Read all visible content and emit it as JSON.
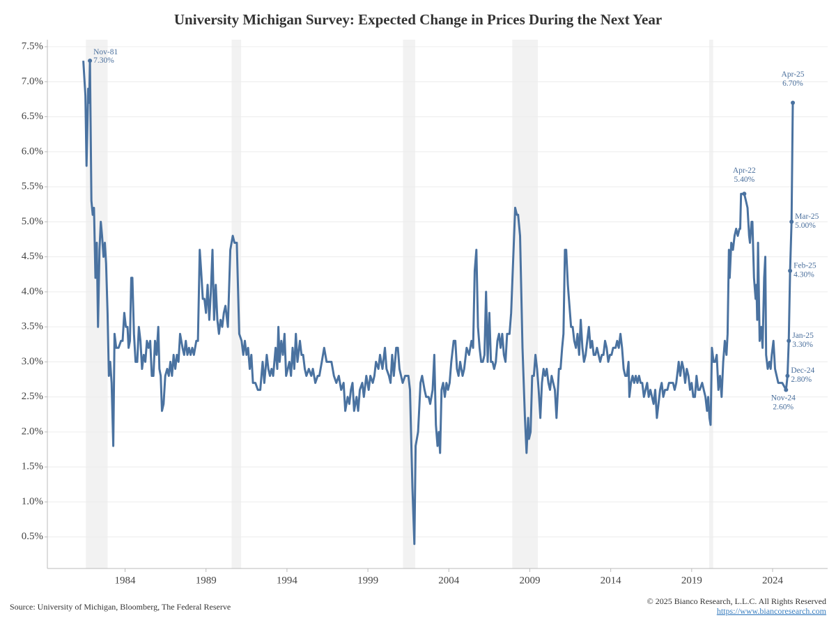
{
  "chart_data": {
    "type": "line",
    "title": "University Michigan Survey: Expected Change in Prices During the Next Year",
    "source": "Source: University of Michigan, Bloomberg, The Federal Reserve",
    "copyright": "© 2025 Bianco Research, L.L.C. All Rights Reserved",
    "url": "https://www.biancoresearch.com",
    "xlim": [
      1979.2,
      2027.4
    ],
    "xticks": [
      1984,
      1989,
      1994,
      1999,
      2004,
      2009,
      2014,
      2019,
      2024
    ],
    "ylim": [
      0.05,
      7.6
    ],
    "yticks": [
      {
        "value": 0.5,
        "label": "0.5%"
      },
      {
        "value": 1.0,
        "label": "1.0%"
      },
      {
        "value": 1.5,
        "label": "1.5%"
      },
      {
        "value": 2.0,
        "label": "2.0%"
      },
      {
        "value": 2.5,
        "label": "2.5%"
      },
      {
        "value": 3.0,
        "label": "3.0%"
      },
      {
        "value": 3.5,
        "label": "3.5%"
      },
      {
        "value": 4.0,
        "label": "4.0%"
      },
      {
        "value": 4.5,
        "label": "4.5%"
      },
      {
        "value": 5.0,
        "label": "5.0%"
      },
      {
        "value": 5.5,
        "label": "5.5%"
      },
      {
        "value": 6.0,
        "label": "6.0%"
      },
      {
        "value": 6.5,
        "label": "6.5%"
      },
      {
        "value": 7.0,
        "label": "7.0%"
      },
      {
        "value": 7.5,
        "label": "7.5%"
      }
    ],
    "grid": true,
    "shaded_periods": [
      [
        1981.58,
        1982.92
      ],
      [
        1990.58,
        1991.17
      ],
      [
        2001.17,
        2001.92
      ],
      [
        2007.92,
        2009.5
      ],
      [
        2020.08,
        2020.33
      ]
    ],
    "shade_color": "#f2f2f2",
    "x": [
      1981.42,
      1981.55,
      1981.62,
      1981.72,
      1981.78,
      1981.83,
      1981.92,
      1982.0,
      1982.08,
      1982.17,
      1982.25,
      1982.33,
      1982.42,
      1982.5,
      1982.58,
      1982.67,
      1982.75,
      1982.83,
      1982.92,
      1983.0,
      1983.08,
      1983.17,
      1983.27,
      1983.35,
      1983.45,
      1983.6,
      1983.75,
      1983.85,
      1983.95,
      1984.05,
      1984.15,
      1984.22,
      1984.3,
      1984.38,
      1984.45,
      1984.55,
      1984.65,
      1984.75,
      1984.85,
      1984.95,
      1985.05,
      1985.15,
      1985.25,
      1985.35,
      1985.45,
      1985.55,
      1985.65,
      1985.75,
      1985.85,
      1985.95,
      1986.05,
      1986.12,
      1986.2,
      1986.28,
      1986.38,
      1986.48,
      1986.6,
      1986.7,
      1986.8,
      1986.9,
      1987.0,
      1987.1,
      1987.2,
      1987.3,
      1987.4,
      1987.55,
      1987.65,
      1987.75,
      1987.85,
      1987.95,
      1988.05,
      1988.15,
      1988.25,
      1988.4,
      1988.5,
      1988.61,
      1988.7,
      1988.8,
      1988.9,
      1989.0,
      1989.1,
      1989.2,
      1989.3,
      1989.4,
      1989.5,
      1989.6,
      1989.7,
      1989.8,
      1989.9,
      1990.0,
      1990.1,
      1990.2,
      1990.35,
      1990.5,
      1990.65,
      1990.76,
      1990.9,
      1991.05,
      1991.2,
      1991.3,
      1991.4,
      1991.5,
      1991.6,
      1991.7,
      1991.8,
      1991.9,
      1992.05,
      1992.2,
      1992.35,
      1992.5,
      1992.6,
      1992.75,
      1992.85,
      1992.95,
      1993.05,
      1993.15,
      1993.3,
      1993.4,
      1993.47,
      1993.55,
      1993.65,
      1993.75,
      1993.85,
      1993.95,
      1994.05,
      1994.15,
      1994.25,
      1994.35,
      1994.45,
      1994.55,
      1994.65,
      1994.8,
      1994.9,
      1995.0,
      1995.1,
      1995.2,
      1995.35,
      1995.5,
      1995.6,
      1995.75,
      1995.9,
      1996.0,
      1996.15,
      1996.3,
      1996.45,
      1996.6,
      1996.75,
      1996.9,
      1997.05,
      1997.2,
      1997.35,
      1997.5,
      1997.6,
      1997.75,
      1997.85,
      1997.95,
      1998.05,
      1998.15,
      1998.3,
      1998.4,
      1998.5,
      1998.65,
      1998.75,
      1998.9,
      1999.05,
      1999.15,
      1999.3,
      1999.4,
      1999.5,
      1999.65,
      1999.75,
      1999.9,
      2000.05,
      2000.15,
      2000.3,
      2000.4,
      2000.5,
      2000.6,
      2000.75,
      2000.85,
      2000.95,
      2001.05,
      2001.15,
      2001.3,
      2001.5,
      2001.6,
      2001.75,
      2001.87,
      2001.95,
      2002.1,
      2002.25,
      2002.35,
      2002.5,
      2002.6,
      2002.75,
      2002.85,
      2003.0,
      2003.1,
      2003.2,
      2003.3,
      2003.38,
      2003.46,
      2003.55,
      2003.65,
      2003.75,
      2003.85,
      2003.95,
      2004.05,
      2004.15,
      2004.3,
      2004.4,
      2004.5,
      2004.6,
      2004.7,
      2004.85,
      2004.95,
      2005.1,
      2005.25,
      2005.4,
      2005.5,
      2005.6,
      2005.7,
      2005.8,
      2005.9,
      2006.0,
      2006.1,
      2006.2,
      2006.3,
      2006.4,
      2006.5,
      2006.6,
      2006.7,
      2006.8,
      2006.9,
      2007.0,
      2007.1,
      2007.2,
      2007.3,
      2007.4,
      2007.5,
      2007.6,
      2007.75,
      2007.85,
      2007.95,
      2008.1,
      2008.2,
      2008.28,
      2008.4,
      2008.55,
      2008.7,
      2008.8,
      2008.9,
      2008.95,
      2009.05,
      2009.15,
      2009.25,
      2009.35,
      2009.45,
      2009.55,
      2009.65,
      2009.75,
      2009.85,
      2009.95,
      2010.05,
      2010.15,
      2010.25,
      2010.35,
      2010.45,
      2010.55,
      2010.65,
      2010.8,
      2010.9,
      2011.0,
      2011.08,
      2011.17,
      2011.25,
      2011.35,
      2011.45,
      2011.55,
      2011.65,
      2011.75,
      2011.85,
      2011.95,
      2012.05,
      2012.15,
      2012.25,
      2012.35,
      2012.45,
      2012.55,
      2012.65,
      2012.75,
      2012.85,
      2012.95,
      2013.05,
      2013.15,
      2013.25,
      2013.35,
      2013.45,
      2013.55,
      2013.65,
      2013.75,
      2013.85,
      2013.95,
      2014.05,
      2014.15,
      2014.3,
      2014.4,
      2014.5,
      2014.6,
      2014.7,
      2014.8,
      2014.9,
      2015.0,
      2015.1,
      2015.15,
      2015.25,
      2015.35,
      2015.45,
      2015.55,
      2015.65,
      2015.75,
      2015.85,
      2015.95,
      2016.05,
      2016.15,
      2016.25,
      2016.35,
      2016.45,
      2016.55,
      2016.65,
      2016.75,
      2016.85,
      2016.95,
      2017.05,
      2017.15,
      2017.25,
      2017.35,
      2017.5,
      2017.6,
      2017.75,
      2017.85,
      2017.95,
      2018.05,
      2018.15,
      2018.2,
      2018.3,
      2018.4,
      2018.5,
      2018.6,
      2018.7,
      2018.8,
      2018.9,
      2019.0,
      2019.1,
      2019.2,
      2019.3,
      2019.4,
      2019.5,
      2019.65,
      2019.75,
      2019.85,
      2019.95,
      2020.02,
      2020.1,
      2020.17,
      2020.25,
      2020.35,
      2020.45,
      2020.55,
      2020.65,
      2020.75,
      2020.85,
      2020.95,
      2021.05,
      2021.15,
      2021.22,
      2021.3,
      2021.35,
      2021.45,
      2021.55,
      2021.65,
      2021.75,
      2021.85,
      2021.95,
      2022.0,
      2022.05,
      2022.15,
      2022.25,
      2022.35,
      2022.45,
      2022.55,
      2022.6,
      2022.7,
      2022.75,
      2022.85,
      2022.95,
      2023.0,
      2023.05,
      2023.1,
      2023.2,
      2023.3,
      2023.38,
      2023.48,
      2023.55,
      2023.6,
      2023.7,
      2023.8,
      2023.88,
      2023.95,
      2024.05,
      2024.15,
      2024.25,
      2024.35,
      2024.5,
      2024.6,
      2024.83,
      2024.92,
      2025.0,
      2025.08,
      2025.17,
      2025.25
    ],
    "series": [
      {
        "color": "#4a72a0",
        "values": [
          7.3,
          6.8,
          5.8,
          6.9,
          6.7,
          7.3,
          5.3,
          5.1,
          5.2,
          4.2,
          4.7,
          3.5,
          4.6,
          5.0,
          4.8,
          4.5,
          4.7,
          4.4,
          3.7,
          2.8,
          3.0,
          2.7,
          1.8,
          3.4,
          3.2,
          3.2,
          3.3,
          3.3,
          3.7,
          3.5,
          3.5,
          3.2,
          3.3,
          4.2,
          4.2,
          3.4,
          3.0,
          3.0,
          3.5,
          3.3,
          2.9,
          3.1,
          3.0,
          3.3,
          3.2,
          3.3,
          2.8,
          2.8,
          3.3,
          3.1,
          3.5,
          2.9,
          2.8,
          2.3,
          2.4,
          2.8,
          2.9,
          2.8,
          3.0,
          2.8,
          3.1,
          2.9,
          3.1,
          3.0,
          3.4,
          3.2,
          3.1,
          3.3,
          3.1,
          3.2,
          3.1,
          3.2,
          3.1,
          3.3,
          3.3,
          4.6,
          4.3,
          3.9,
          3.9,
          3.7,
          4.1,
          3.6,
          4.0,
          4.6,
          3.6,
          4.1,
          3.6,
          3.4,
          3.6,
          3.5,
          3.7,
          3.8,
          3.5,
          4.6,
          4.8,
          4.7,
          4.7,
          3.4,
          3.3,
          3.1,
          3.3,
          3.1,
          3.2,
          2.9,
          3.1,
          2.7,
          2.7,
          2.6,
          2.6,
          3.0,
          2.7,
          3.1,
          2.9,
          2.8,
          2.9,
          2.8,
          3.2,
          2.9,
          3.5,
          3.0,
          3.3,
          3.1,
          3.4,
          2.8,
          2.9,
          3.0,
          2.8,
          3.2,
          2.9,
          3.4,
          3.0,
          3.3,
          3.1,
          3.1,
          2.9,
          2.8,
          2.9,
          2.8,
          2.9,
          2.7,
          2.8,
          2.8,
          3.0,
          3.2,
          3.0,
          3.0,
          3.0,
          2.8,
          2.7,
          2.8,
          2.6,
          2.7,
          2.3,
          2.5,
          2.4,
          2.6,
          2.7,
          2.3,
          2.5,
          2.3,
          2.6,
          2.7,
          2.5,
          2.8,
          2.6,
          2.8,
          2.7,
          2.8,
          3.0,
          2.9,
          3.1,
          2.9,
          3.2,
          2.9,
          2.8,
          2.7,
          3.1,
          2.8,
          3.2,
          3.2,
          2.9,
          2.8,
          2.7,
          2.8,
          2.8,
          2.6,
          1.2,
          0.4,
          1.8,
          2.0,
          2.7,
          2.8,
          2.6,
          2.5,
          2.5,
          2.4,
          2.6,
          3.1,
          2.1,
          1.8,
          2.0,
          1.7,
          2.6,
          2.7,
          2.5,
          2.7,
          2.6,
          2.7,
          3.0,
          3.3,
          3.3,
          2.9,
          2.8,
          3.0,
          2.8,
          2.9,
          3.2,
          3.1,
          3.3,
          3.2,
          4.3,
          4.6,
          3.5,
          3.2,
          3.0,
          3.0,
          3.1,
          4.0,
          3.0,
          3.7,
          3.0,
          3.0,
          2.9,
          3.0,
          3.3,
          3.4,
          3.2,
          3.4,
          3.1,
          3.0,
          3.4,
          3.4,
          3.7,
          4.3,
          5.2,
          5.1,
          5.1,
          4.8,
          3.2,
          2.2,
          1.7,
          2.2,
          1.9,
          2.0,
          2.8,
          2.8,
          3.1,
          2.9,
          2.6,
          2.2,
          2.7,
          2.9,
          2.8,
          2.9,
          2.7,
          2.6,
          2.8,
          2.7,
          2.6,
          2.2,
          2.9,
          2.9,
          3.2,
          3.4,
          4.6,
          4.6,
          4.1,
          3.8,
          3.5,
          3.5,
          3.3,
          3.2,
          3.4,
          3.1,
          3.6,
          3.2,
          3.0,
          3.1,
          3.3,
          3.5,
          3.2,
          3.3,
          3.1,
          3.1,
          3.2,
          3.1,
          3.0,
          3.1,
          3.1,
          3.3,
          3.2,
          3.0,
          3.1,
          3.1,
          3.2,
          3.2,
          3.3,
          3.2,
          3.4,
          3.2,
          2.9,
          2.8,
          2.8,
          3.0,
          2.5,
          2.7,
          2.8,
          2.7,
          2.8,
          2.7,
          2.8,
          2.7,
          2.7,
          2.5,
          2.6,
          2.7,
          2.5,
          2.6,
          2.5,
          2.4,
          2.6,
          2.2,
          2.4,
          2.6,
          2.7,
          2.5,
          2.6,
          2.6,
          2.7,
          2.7,
          2.7,
          2.6,
          2.7,
          2.9,
          3.0,
          2.8,
          3.0,
          2.9,
          2.7,
          2.9,
          2.8,
          2.6,
          2.7,
          2.5,
          2.5,
          2.8,
          2.6,
          2.6,
          2.7,
          2.6,
          2.5,
          2.3,
          2.5,
          2.2,
          2.1,
          3.2,
          3.0,
          3.0,
          3.1,
          2.6,
          2.8,
          2.5,
          3.0,
          3.3,
          3.1,
          3.4,
          4.6,
          4.2,
          4.7,
          4.6,
          4.8,
          4.9,
          4.8,
          4.9,
          4.9,
          5.4,
          5.4,
          5.4,
          5.3,
          5.2,
          4.8,
          4.7,
          5.0,
          5.0,
          4.2,
          3.9,
          4.1,
          3.6,
          4.7,
          3.3,
          3.5,
          3.2,
          4.2,
          4.5,
          3.1,
          2.9,
          3.0,
          2.9,
          3.1,
          3.3,
          2.9,
          2.8,
          2.7,
          2.7,
          2.7,
          2.6,
          2.8,
          3.3,
          4.3,
          5.0,
          6.7
        ]
      }
    ],
    "annotations": [
      {
        "label": "Nov-81",
        "value_label": "7.30%",
        "x": 1981.83,
        "y": 7.3
      },
      {
        "label": "Apr-22",
        "value_label": "5.40%",
        "x": 2022.25,
        "y": 5.4
      },
      {
        "label": "Apr-25",
        "value_label": "6.70%",
        "x": 2025.25,
        "y": 6.7
      },
      {
        "label": "Mar-25",
        "value_label": "5.00%",
        "x": 2025.17,
        "y": 5.0
      },
      {
        "label": "Feb-25",
        "value_label": "4.30%",
        "x": 2025.08,
        "y": 4.3
      },
      {
        "label": "Jan-25",
        "value_label": "3.30%",
        "x": 2025.0,
        "y": 3.3
      },
      {
        "label": "Dec-24",
        "value_label": "2.80%",
        "x": 2024.92,
        "y": 2.8
      },
      {
        "label": "Nov-24",
        "value_label": "2.60%",
        "x": 2024.83,
        "y": 2.6
      }
    ]
  }
}
